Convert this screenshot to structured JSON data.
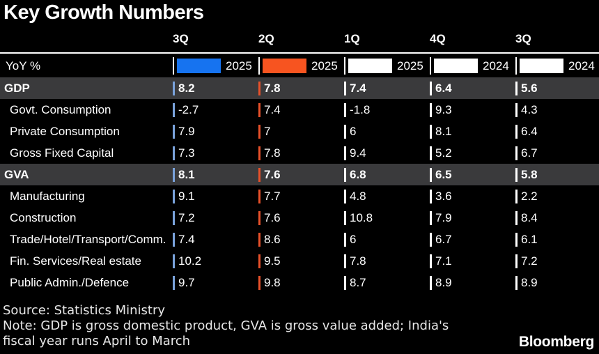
{
  "title": "Key Growth Numbers",
  "legend_label": "YoY %",
  "columns": [
    {
      "quarter": "3Q",
      "year": "2025",
      "swatch": "#1673f0",
      "tick": "#7aa3dc"
    },
    {
      "quarter": "2Q",
      "year": "2025",
      "swatch": "#f75420",
      "tick": "#e8512a"
    },
    {
      "quarter": "1Q",
      "year": "2025",
      "swatch": "#ffffff",
      "tick": "#ffffff"
    },
    {
      "quarter": "4Q",
      "year": "2024",
      "swatch": "#ffffff",
      "tick": "#ffffff"
    },
    {
      "quarter": "3Q",
      "year": "2024",
      "swatch": "#ffffff",
      "tick": "#ffffff"
    }
  ],
  "rows": [
    {
      "label": "GDP",
      "section": true,
      "values": [
        "8.2",
        "7.8",
        "7.4",
        "6.4",
        "5.6"
      ]
    },
    {
      "label": "Govt. Consumption",
      "section": false,
      "values": [
        "-2.7",
        "7.4",
        "-1.8",
        "9.3",
        "4.3"
      ]
    },
    {
      "label": "Private Consumption",
      "section": false,
      "values": [
        "7.9",
        "7",
        "6",
        "8.1",
        "6.4"
      ]
    },
    {
      "label": "Gross Fixed Capital",
      "section": false,
      "values": [
        "7.3",
        "7.8",
        "9.4",
        "5.2",
        "6.7"
      ]
    },
    {
      "label": "GVA",
      "section": true,
      "values": [
        "8.1",
        "7.6",
        "6.8",
        "6.5",
        "5.8"
      ]
    },
    {
      "label": "Manufacturing",
      "section": false,
      "values": [
        "9.1",
        "7.7",
        "4.8",
        "3.6",
        "2.2"
      ]
    },
    {
      "label": "Construction",
      "section": false,
      "values": [
        "7.2",
        "7.6",
        "10.8",
        "7.9",
        "8.4"
      ]
    },
    {
      "label": "Trade/Hotel/Transport/Comm.",
      "section": false,
      "values": [
        "7.4",
        "8.6",
        "6",
        "6.7",
        "6.1"
      ]
    },
    {
      "label": "Fin. Services/Real estate",
      "section": false,
      "values": [
        "10.2",
        "9.5",
        "7.8",
        "7.1",
        "7.2"
      ]
    },
    {
      "label": "Public Admin./Defence",
      "section": false,
      "values": [
        "9.7",
        "9.8",
        "8.7",
        "8.9",
        "8.9"
      ]
    }
  ],
  "footer": {
    "source": "Source: Statistics Ministry",
    "note": "Note: GDP is gross domestic product, GVA is gross value added; India's fiscal year runs April to March",
    "brand": "Bloomberg"
  },
  "colors": {
    "background": "#000000",
    "section_band": "#3a3a3c",
    "header_rule": "#ffffff",
    "text": "#ffffff",
    "footer_text": "#e6e6e6",
    "accent_blue": "#1673f0",
    "accent_orange": "#f75420"
  },
  "chart_data": {
    "type": "table",
    "title": "Key Growth Numbers",
    "unit": "YoY %",
    "columns": [
      "3Q 2025",
      "2Q 2025",
      "1Q 2025",
      "4Q 2024",
      "3Q 2024"
    ],
    "column_colors": [
      "#1673f0",
      "#f75420",
      "#ffffff",
      "#ffffff",
      "#ffffff"
    ],
    "rows": [
      {
        "label": "GDP",
        "group": "GDP",
        "values": [
          8.2,
          7.8,
          7.4,
          6.4,
          5.6
        ]
      },
      {
        "label": "Govt. Consumption",
        "group": "GDP",
        "values": [
          -2.7,
          7.4,
          -1.8,
          9.3,
          4.3
        ]
      },
      {
        "label": "Private Consumption",
        "group": "GDP",
        "values": [
          7.9,
          7,
          6,
          8.1,
          6.4
        ]
      },
      {
        "label": "Gross Fixed Capital",
        "group": "GDP",
        "values": [
          7.3,
          7.8,
          9.4,
          5.2,
          6.7
        ]
      },
      {
        "label": "GVA",
        "group": "GVA",
        "values": [
          8.1,
          7.6,
          6.8,
          6.5,
          5.8
        ]
      },
      {
        "label": "Manufacturing",
        "group": "GVA",
        "values": [
          9.1,
          7.7,
          4.8,
          3.6,
          2.2
        ]
      },
      {
        "label": "Construction",
        "group": "GVA",
        "values": [
          7.2,
          7.6,
          10.8,
          7.9,
          8.4
        ]
      },
      {
        "label": "Trade/Hotel/Transport/Comm.",
        "group": "GVA",
        "values": [
          7.4,
          8.6,
          6,
          6.7,
          6.1
        ]
      },
      {
        "label": "Fin. Services/Real estate",
        "group": "GVA",
        "values": [
          10.2,
          9.5,
          7.8,
          7.1,
          7.2
        ]
      },
      {
        "label": "Public Admin./Defence",
        "group": "GVA",
        "values": [
          9.7,
          9.8,
          8.7,
          8.9,
          8.9
        ]
      }
    ],
    "legend_position": "top",
    "grid": false
  }
}
